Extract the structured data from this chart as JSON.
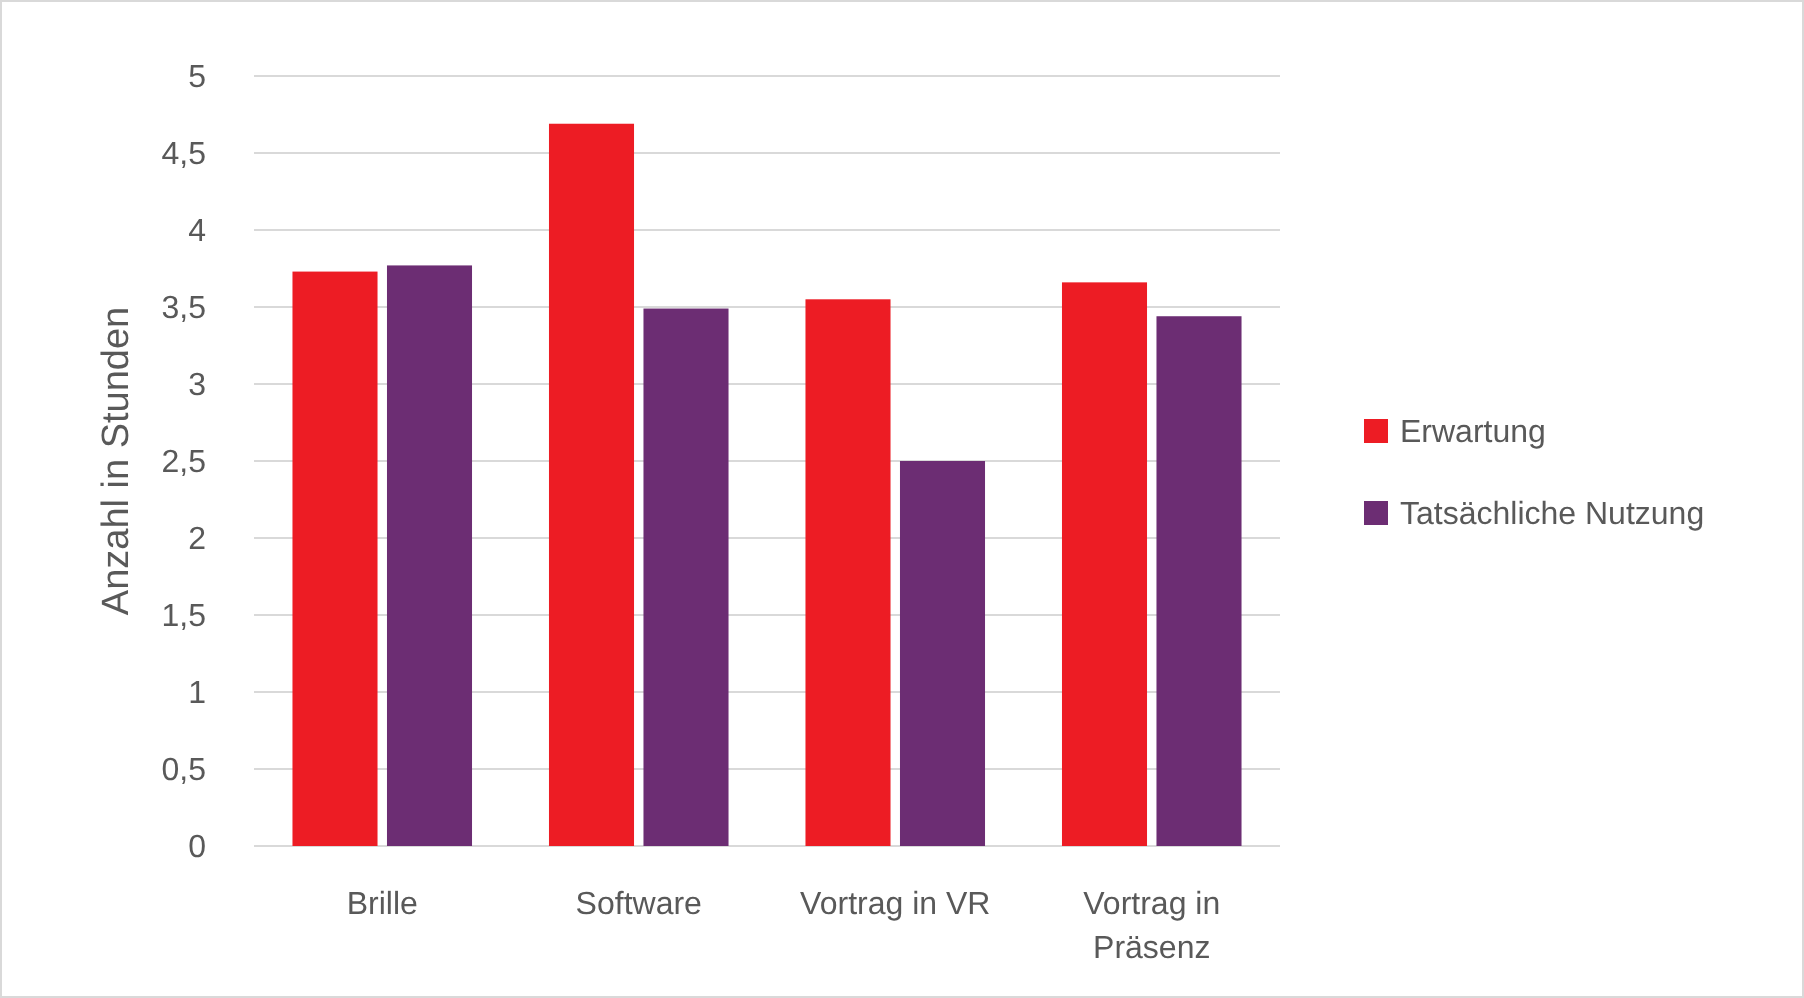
{
  "chart_data": {
    "type": "bar",
    "ylabel": "Anzahl in Stunden",
    "categories": [
      "Brille",
      "Software",
      "Vortrag in VR",
      "Vortrag in Präsenz"
    ],
    "series": [
      {
        "name": "Erwartung",
        "color": "#ed1c24",
        "values": [
          3.73,
          4.69,
          3.55,
          3.66
        ]
      },
      {
        "name": "Tatsächliche Nutzung",
        "color": "#6c2d73",
        "values": [
          3.77,
          3.49,
          2.5,
          3.44
        ]
      }
    ],
    "ylim": [
      0,
      5
    ],
    "yticks": [
      0,
      {
        "value": 0.5,
        "label": "0,5"
      },
      1,
      {
        "value": 1.5,
        "label": "1,5"
      },
      2,
      {
        "value": 2.5,
        "label": "2,5"
      },
      3,
      {
        "value": 3.5,
        "label": "3,5"
      },
      4,
      {
        "value": 4.5,
        "label": "4,5"
      },
      5
    ],
    "grid": "y",
    "legend": "right"
  }
}
